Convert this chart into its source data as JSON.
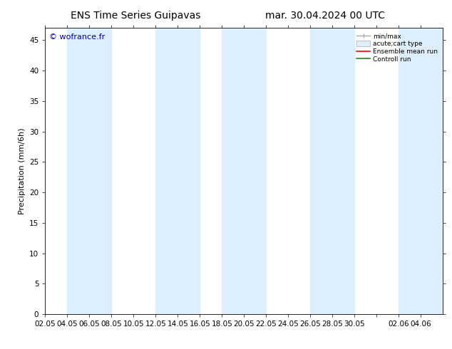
{
  "title_left": "ENS Time Series Guipavas",
  "title_right": "mar. 30.04.2024 00 UTC",
  "ylabel": "Precipitation (mm/6h)",
  "watermark": "© wofrance.fr",
  "ylim": [
    0,
    47
  ],
  "yticks": [
    0,
    5,
    10,
    15,
    20,
    25,
    30,
    35,
    40,
    45
  ],
  "xtick_labels": [
    "02.05",
    "04.05",
    "06.05",
    "08.05",
    "10.05",
    "12.05",
    "14.05",
    "16.05",
    "18.05",
    "20.05",
    "22.05",
    "24.05",
    "26.05",
    "28.05",
    "30.05",
    "",
    "02.06",
    "04.06"
  ],
  "shade_color": "#ddeeff",
  "background_color": "#ffffff",
  "title_fontsize": 10,
  "axis_fontsize": 8,
  "tick_fontsize": 7.5,
  "watermark_color": "#0000bb",
  "n_steps": 18,
  "shade_ranges": [
    [
      1,
      3
    ],
    [
      5,
      7
    ],
    [
      8,
      10
    ],
    [
      12,
      14
    ],
    [
      16,
      18
    ]
  ]
}
